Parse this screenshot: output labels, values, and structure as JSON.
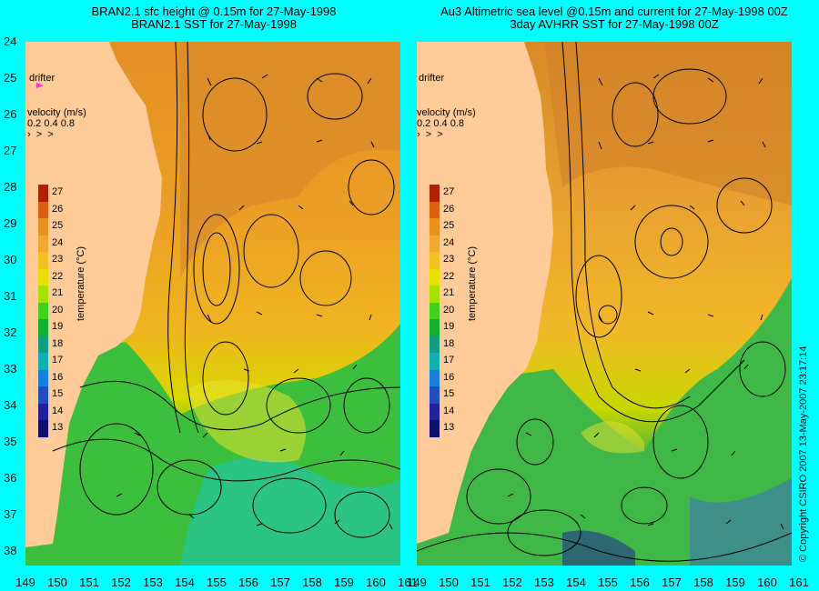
{
  "titles": {
    "left_line1": "BRAN2.1 sfc height @ 0.15m for 27-May-1998",
    "left_line2": "BRAN2.1 SST for 27-May-1998",
    "right_line1": "Au3 Altimetric sea level  @0.15m and current for 27-May-1998 00Z",
    "right_line2": "3day AVHRR SST for 27-May-1998 00Z"
  },
  "y_ticks": [
    "24",
    "25",
    "26",
    "27",
    "28",
    "29",
    "30",
    "31",
    "32",
    "33",
    "34",
    "35",
    "36",
    "37",
    "38"
  ],
  "x_ticks": [
    "149",
    "150",
    "151",
    "152",
    "153",
    "154",
    "155",
    "156",
    "157",
    "158",
    "159",
    "160",
    "161"
  ],
  "legend": {
    "title": "temperature (°C)",
    "values": [
      "27",
      "26",
      "25",
      "24",
      "23",
      "22",
      "21",
      "20",
      "19",
      "18",
      "17",
      "16",
      "15",
      "14",
      "13"
    ],
    "colors": [
      "#b02000",
      "#d86010",
      "#e89020",
      "#f0a830",
      "#f2c020",
      "#e8e000",
      "#a8e000",
      "#40d020",
      "#10b030",
      "#10a080",
      "#10b0b0",
      "#1880e0",
      "#2050c0",
      "#2020a0",
      "#101070"
    ]
  },
  "drifter_label": "drifter",
  "velocity": {
    "label": "velocity (m/s)",
    "scale": "0.2 0.4 0.8"
  },
  "copyright": "© Copyright CSIRO 2007   13-May-2007 23:17:14",
  "colors": {
    "background": "#00ffff",
    "land": "#ffcc99",
    "drifter": "#ff33cc"
  }
}
